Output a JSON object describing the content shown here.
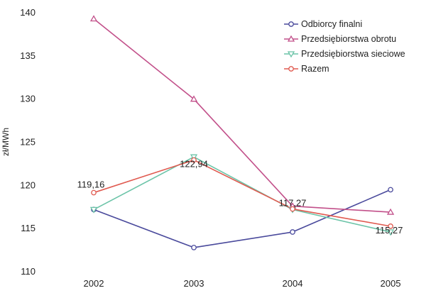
{
  "chart_data": {
    "type": "line",
    "title": "",
    "xlabel": "",
    "ylabel": "zł/MWh",
    "x": [
      "2002",
      "2003",
      "2004",
      "2005"
    ],
    "ylim": [
      110,
      140
    ],
    "yticks": [
      "110",
      "115",
      "120",
      "125",
      "130",
      "135",
      "140"
    ],
    "grid": false,
    "legend_position": "top-right",
    "series": [
      {
        "name": "Odbiorcy finalni",
        "color": "#4a4a9c",
        "marker": "circle",
        "values": [
          117.2,
          112.8,
          114.6,
          119.5
        ]
      },
      {
        "name": "Przedsiębiorstwa obrotu",
        "color": "#c2508a",
        "marker": "triangle",
        "values": [
          139.3,
          130.0,
          117.6,
          116.9
        ]
      },
      {
        "name": "Przedsiębiorstwa sieciowe",
        "color": "#6cc4a8",
        "marker": "triangle-down",
        "values": [
          117.2,
          123.3,
          117.2,
          114.6
        ]
      },
      {
        "name": "Razem",
        "color": "#e05a50",
        "marker": "circle",
        "values": [
          119.16,
          122.94,
          117.27,
          115.27
        ]
      }
    ],
    "data_labels": [
      {
        "series": "Razem",
        "x": "2002",
        "text": "119,16"
      },
      {
        "series": "Razem",
        "x": "2003",
        "text": "122,94"
      },
      {
        "series": "Razem",
        "x": "2004",
        "text": "117,27"
      },
      {
        "series": "Razem",
        "x": "2005",
        "text": "115,27"
      }
    ]
  }
}
